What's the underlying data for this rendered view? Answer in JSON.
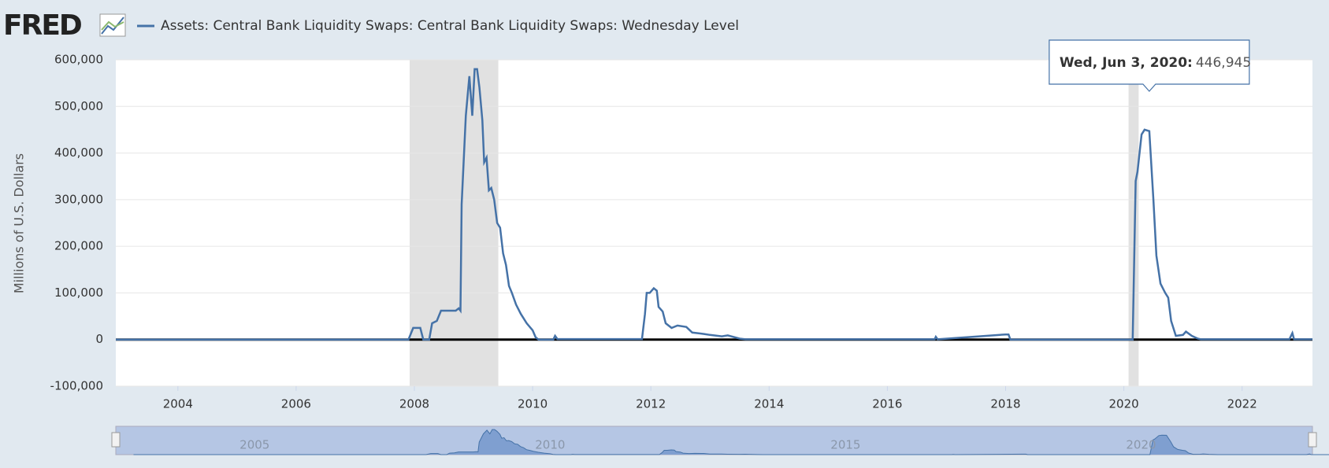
{
  "chart_data": {
    "type": "line",
    "logo": "FRED",
    "title": "Assets: Central Bank Liquidity Swaps: Central Bank Liquidity Swaps: Wednesday Level",
    "y_label": "Millions of U.S. Dollars",
    "xlim": [
      2002.95,
      2023.19
    ],
    "xticks": [
      2004,
      2006,
      2008,
      2010,
      2012,
      2014,
      2016,
      2018,
      2020,
      2022
    ],
    "ylim": [
      -100000,
      600000
    ],
    "yticks": [
      {
        "value": -100000,
        "label": "-100,000"
      },
      0,
      {
        "value": 100000,
        "label": "100,000"
      },
      {
        "value": 200000,
        "label": "200,000"
      },
      {
        "value": 300000,
        "label": "300,000"
      },
      {
        "value": 400000,
        "label": "400,000"
      },
      {
        "value": 500000,
        "label": "500,000"
      },
      {
        "value": 600000,
        "label": "600,000"
      }
    ],
    "grid": true,
    "shaded_ranges": [
      [
        2007.92,
        2009.42
      ],
      [
        2020.08,
        2020.25
      ]
    ],
    "x": [
      2002.95,
      2007.9,
      2007.98,
      2008.1,
      2008.15,
      2008.25,
      2008.3,
      2008.38,
      2008.45,
      2008.7,
      2008.75,
      2008.78,
      2008.8,
      2008.87,
      2008.93,
      2008.98,
      2009.02,
      2009.06,
      2009.1,
      2009.15,
      2009.18,
      2009.22,
      2009.26,
      2009.3,
      2009.35,
      2009.4,
      2009.45,
      2009.5,
      2009.55,
      2009.6,
      2009.65,
      2009.72,
      2009.8,
      2009.9,
      2010.0,
      2010.05,
      2010.1,
      2010.35,
      2010.38,
      2010.42,
      2011.85,
      2011.9,
      2011.93,
      2011.98,
      2012.05,
      2012.1,
      2012.13,
      2012.2,
      2012.25,
      2012.35,
      2012.45,
      2012.6,
      2012.7,
      2012.9,
      2013.0,
      2013.2,
      2013.3,
      2013.5,
      2013.6,
      2016.8,
      2016.82,
      2016.85,
      2018.0,
      2018.05,
      2018.08,
      2020.15,
      2020.2,
      2020.23,
      2020.3,
      2020.35,
      2020.43,
      2020.5,
      2020.55,
      2020.62,
      2020.7,
      2020.75,
      2020.8,
      2020.88,
      2021.0,
      2021.05,
      2021.15,
      2021.25,
      2021.3,
      2022.8,
      2022.85,
      2022.88,
      2023.19
    ],
    "series": [
      {
        "name": "Assets: Central Bank Liquidity Swaps: Central Bank Liquidity Swaps: Wednesday Level",
        "color": "#4572a7",
        "values": [
          0,
          0,
          25000,
          25000,
          0,
          0,
          35000,
          40000,
          62000,
          62000,
          67000,
          62000,
          290000,
          480000,
          565000,
          480000,
          580000,
          580000,
          540000,
          470000,
          380000,
          390000,
          320000,
          325000,
          300000,
          250000,
          240000,
          185000,
          160000,
          115000,
          100000,
          75000,
          55000,
          35000,
          20000,
          5000,
          0,
          0,
          8000,
          1000,
          1000,
          55000,
          100000,
          100000,
          110000,
          105000,
          70000,
          60000,
          35000,
          25000,
          30000,
          27000,
          15000,
          12000,
          10000,
          7000,
          9000,
          2000,
          500,
          500,
          6000,
          500,
          11000,
          11000,
          0,
          0,
          340000,
          360000,
          440000,
          450000,
          446945,
          300000,
          180000,
          120000,
          100000,
          90000,
          40000,
          8000,
          10000,
          17000,
          8000,
          2000,
          500,
          500,
          14000,
          500,
          500
        ]
      }
    ],
    "tooltip": {
      "x": 2020.43,
      "label": "Wed, Jun 3, 2020:",
      "value": {
        "value": 446945,
        "label": "446,945"
      }
    },
    "navigator": {
      "xlim": [
        2002.65,
        2022.9
      ],
      "ylim": [
        0,
        600000
      ],
      "xticks": [
        2005,
        2010,
        2015,
        2020
      ]
    }
  }
}
